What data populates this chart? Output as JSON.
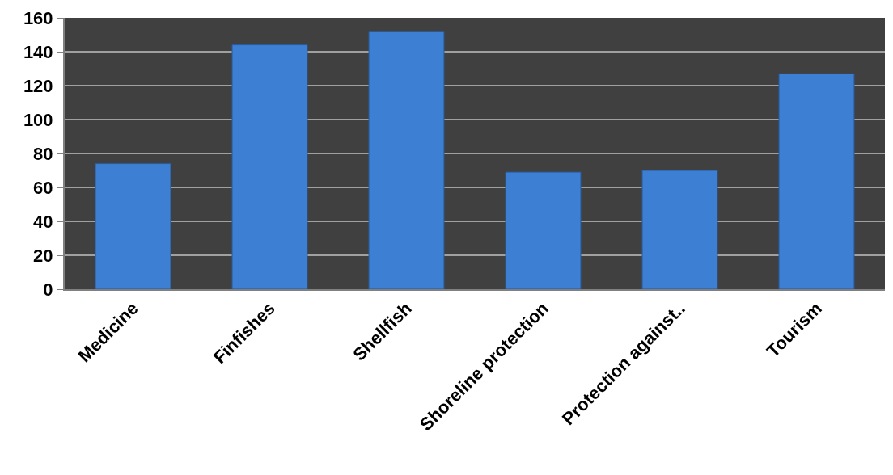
{
  "chart_data": {
    "type": "bar",
    "categories": [
      "Medicine",
      "Finfishes",
      "Shellfish",
      "Shoreline protection",
      "Protection against..",
      "Tourism"
    ],
    "values": [
      74,
      144,
      152,
      69,
      70,
      127
    ],
    "color": "#3d7fd2",
    "ylim": [
      0,
      160
    ],
    "yticks": [
      0,
      20,
      40,
      60,
      80,
      100,
      120,
      140,
      160
    ],
    "grid": "y",
    "legend": false
  }
}
